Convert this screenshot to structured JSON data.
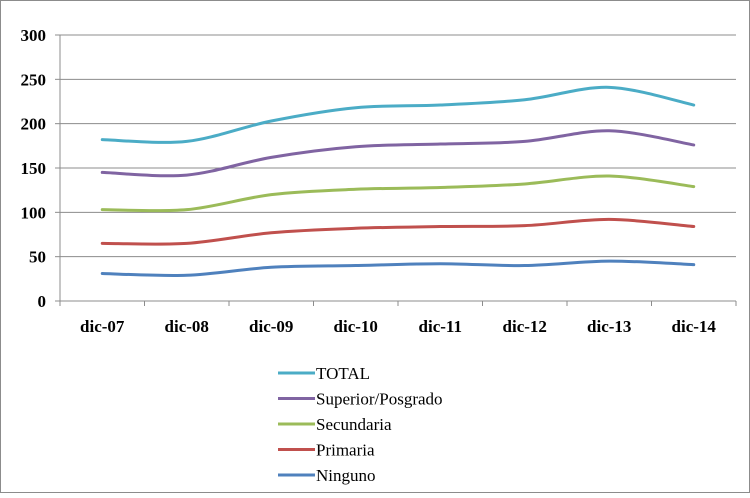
{
  "chart_data": {
    "type": "line",
    "title": "",
    "xlabel": "",
    "ylabel": "",
    "categories": [
      "dic-07",
      "dic-08",
      "dic-09",
      "dic-10",
      "dic-11",
      "dic-12",
      "dic-13",
      "dic-14"
    ],
    "ylim": [
      0,
      300
    ],
    "yticks": [
      0,
      50,
      100,
      150,
      200,
      250,
      300
    ],
    "grid": true,
    "legend_position": "bottom",
    "series": [
      {
        "name": "TOTAL",
        "color": "#4BACC6",
        "values": [
          182,
          180,
          203,
          218,
          221,
          227,
          241,
          221
        ]
      },
      {
        "name": "Superior/Posgrado",
        "color": "#8064A2",
        "values": [
          145,
          142,
          162,
          174,
          177,
          180,
          192,
          176
        ]
      },
      {
        "name": "Secundaria",
        "color": "#9BBB59",
        "values": [
          103,
          103,
          120,
          126,
          128,
          132,
          141,
          129
        ]
      },
      {
        "name": "Primaria",
        "color": "#C0504D",
        "values": [
          65,
          65,
          77,
          82,
          84,
          85,
          92,
          84
        ]
      },
      {
        "name": "Ninguno",
        "color": "#4F81BD",
        "values": [
          31,
          29,
          38,
          40,
          42,
          40,
          45,
          41
        ]
      }
    ]
  }
}
